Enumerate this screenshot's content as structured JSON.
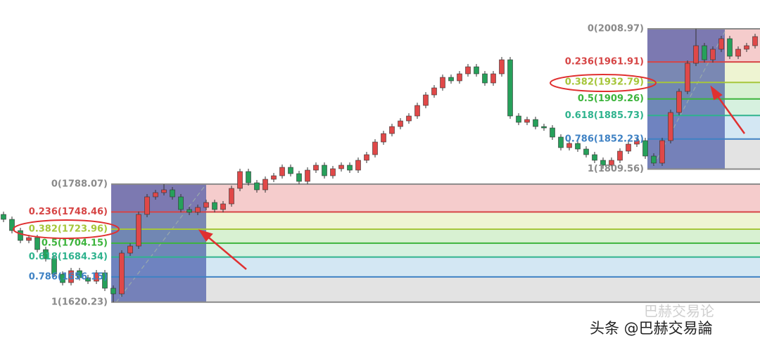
{
  "chart_data": {
    "type": "candlestick",
    "ylim": [
      1555,
      2050
    ],
    "up_color": "#e04848",
    "down_color": "#26a05a",
    "open": [
      1745,
      1738,
      1722,
      1708,
      1712,
      1695,
      1682,
      1660,
      1648,
      1665,
      1655,
      1650,
      1662,
      1640,
      1632,
      1690,
      1700,
      1745,
      1770,
      1776,
      1780,
      1770,
      1752,
      1748,
      1755,
      1762,
      1752,
      1760,
      1782,
      1806,
      1790,
      1780,
      1795,
      1800,
      1812,
      1803,
      1792,
      1808,
      1815,
      1800,
      1810,
      1815,
      1808,
      1822,
      1830,
      1848,
      1860,
      1870,
      1878,
      1885,
      1900,
      1915,
      1925,
      1940,
      1935,
      1945,
      1955,
      1945,
      1932,
      1945,
      1965,
      1885,
      1876,
      1880,
      1870,
      1868,
      1855,
      1840,
      1846,
      1838,
      1830,
      1822,
      1815,
      1822,
      1835,
      1845,
      1850,
      1828,
      1818,
      1850,
      1890,
      1920,
      1960,
      1985,
      1965,
      1980,
      1995,
      1970,
      1980,
      1985
    ],
    "high": [
      1749,
      1742,
      1726,
      1716,
      1716,
      1699,
      1686,
      1664,
      1669,
      1669,
      1659,
      1666,
      1666,
      1644,
      1694,
      1704,
      1749,
      1774,
      1780,
      1788,
      1784,
      1774,
      1756,
      1759,
      1766,
      1766,
      1764,
      1786,
      1810,
      1810,
      1794,
      1799,
      1804,
      1816,
      1816,
      1807,
      1812,
      1819,
      1819,
      1814,
      1819,
      1819,
      1826,
      1834,
      1852,
      1864,
      1874,
      1882,
      1889,
      1904,
      1919,
      1929,
      1944,
      1944,
      1949,
      1959,
      1959,
      1949,
      1949,
      1969,
      1969,
      1889,
      1884,
      1884,
      1874,
      1872,
      1859,
      1850,
      1850,
      1842,
      1834,
      1826,
      1826,
      1839,
      1849,
      1854,
      1854,
      1832,
      1854,
      1894,
      1924,
      1964,
      2009,
      1989,
      1984,
      1999,
      1999,
      1984,
      1989,
      2002
    ],
    "low": [
      1734,
      1718,
      1704,
      1704,
      1691,
      1678,
      1656,
      1644,
      1644,
      1651,
      1646,
      1646,
      1636,
      1620,
      1628,
      1686,
      1696,
      1741,
      1766,
      1772,
      1766,
      1748,
      1744,
      1744,
      1751,
      1748,
      1748,
      1756,
      1778,
      1786,
      1776,
      1776,
      1791,
      1796,
      1799,
      1788,
      1788,
      1804,
      1796,
      1796,
      1806,
      1804,
      1804,
      1818,
      1826,
      1844,
      1856,
      1866,
      1874,
      1881,
      1896,
      1911,
      1921,
      1931,
      1931,
      1941,
      1941,
      1928,
      1928,
      1941,
      1881,
      1872,
      1872,
      1866,
      1864,
      1851,
      1836,
      1836,
      1834,
      1826,
      1818,
      1810,
      1811,
      1818,
      1831,
      1841,
      1824,
      1814,
      1814,
      1846,
      1886,
      1916,
      1956,
      1961,
      1961,
      1976,
      1966,
      1966,
      1976,
      1981
    ],
    "close": [
      1738,
      1722,
      1708,
      1712,
      1695,
      1682,
      1660,
      1648,
      1665,
      1655,
      1650,
      1662,
      1640,
      1632,
      1690,
      1700,
      1745,
      1770,
      1776,
      1780,
      1770,
      1752,
      1748,
      1755,
      1762,
      1752,
      1760,
      1782,
      1806,
      1790,
      1780,
      1795,
      1800,
      1812,
      1803,
      1792,
      1808,
      1815,
      1800,
      1810,
      1815,
      1808,
      1822,
      1830,
      1848,
      1860,
      1870,
      1878,
      1885,
      1900,
      1915,
      1925,
      1940,
      1935,
      1945,
      1955,
      1945,
      1932,
      1945,
      1965,
      1885,
      1876,
      1880,
      1870,
      1868,
      1855,
      1840,
      1846,
      1838,
      1830,
      1822,
      1815,
      1822,
      1835,
      1845,
      1850,
      1828,
      1818,
      1850,
      1890,
      1920,
      1960,
      1985,
      1965,
      1980,
      1995,
      1970,
      1980,
      1985,
      1998
    ],
    "fibonacci": [
      {
        "levels": [
          {
            "label": "0(1788.07)",
            "price": 1788.07,
            "color": "#8a8a8a",
            "fill": "#f5cccc"
          },
          {
            "label": "0.236(1748.46)",
            "price": 1748.46,
            "color": "#d64545",
            "fill": "#eef4d2"
          },
          {
            "label": "0.382(1723.96)",
            "price": 1723.96,
            "color": "#a6c63a",
            "fill": "#d8f1d2"
          },
          {
            "label": "0.5(1704.15)",
            "price": 1704.15,
            "color": "#3cb43c",
            "fill": "#d6f1df"
          },
          {
            "label": "0.618(1684.34)",
            "price": 1684.34,
            "color": "#2fb38e",
            "fill": "#d3e7f3"
          },
          {
            "label": "0.786(1656.15)",
            "price": 1656.15,
            "color": "#3f82c4",
            "fill": "#e3e3e3"
          },
          {
            "label": "1(1620.23)",
            "price": 1620.23,
            "color": "#8a8a8a"
          }
        ]
      },
      {
        "levels": [
          {
            "label": "0(2008.97)",
            "price": 2008.97,
            "color": "#8a8a8a",
            "fill": "#f5cccc"
          },
          {
            "label": "0.236(1961.91)",
            "price": 1961.91,
            "color": "#d64545",
            "fill": "#eef4d2"
          },
          {
            "label": "0.382(1932.79)",
            "price": 1932.79,
            "color": "#a6c63a",
            "fill": "#d8f1d2"
          },
          {
            "label": "0.5(1909.26)",
            "price": 1909.26,
            "color": "#3cb43c",
            "fill": "#d6f1df"
          },
          {
            "label": "0.618(1885.73)",
            "price": 1885.73,
            "color": "#2fb38e",
            "fill": "#d3e7f3"
          },
          {
            "label": "0.786(1852.23)",
            "price": 1852.23,
            "color": "#3f82c4",
            "fill": "#e3e3e3"
          },
          {
            "label": "1(1809.56)",
            "price": 1809.56,
            "color": "#8a8a8a"
          }
        ]
      }
    ]
  },
  "watermark": {
    "faded": "巴赫交易论",
    "main": "头条 @巴赫交易論"
  }
}
